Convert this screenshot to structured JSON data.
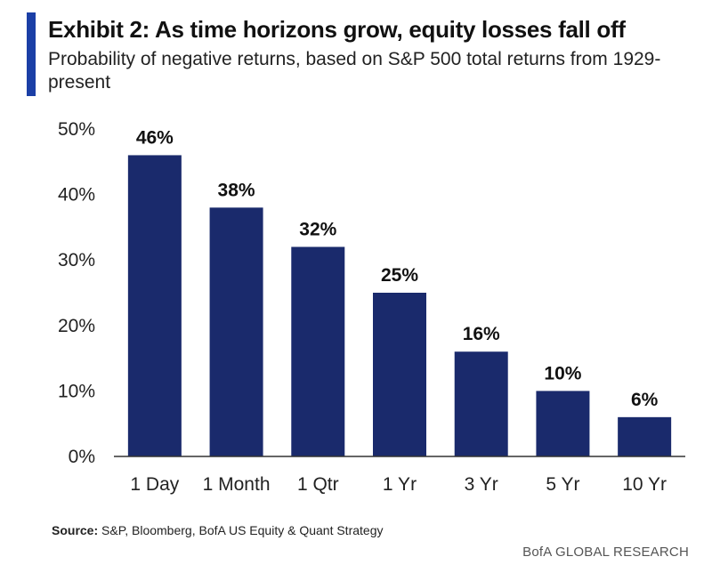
{
  "header": {
    "title": "Exhibit 2: As time horizons grow, equity losses fall off",
    "subtitle": "Probability of negative returns, based on S&P 500 total returns from 1929-present"
  },
  "chart_data": {
    "type": "bar",
    "title": "Exhibit 2: As time horizons grow, equity losses fall off",
    "subtitle": "Probability of negative returns, based on S&P 500 total returns from 1929-present",
    "categories": [
      "1 Day",
      "1 Month",
      "1 Qtr",
      "1 Yr",
      "3 Yr",
      "5 Yr",
      "10 Yr"
    ],
    "values": [
      46,
      38,
      32,
      25,
      16,
      10,
      6
    ],
    "data_labels": [
      "46%",
      "38%",
      "32%",
      "25%",
      "16%",
      "10%",
      "6%"
    ],
    "yticks": [
      "0%",
      "10%",
      "20%",
      "30%",
      "40%",
      "50%"
    ],
    "ylim": [
      0,
      50
    ],
    "xlabel": "",
    "ylabel": "",
    "grid": false,
    "bar_color": "#1a2a6c",
    "accent_color": "#1b3fa6"
  },
  "footer": {
    "source_key": "Source:",
    "source_text": "S&P, Bloomberg, BofA US Equity & Quant Strategy",
    "brand": "BofA GLOBAL RESEARCH"
  }
}
